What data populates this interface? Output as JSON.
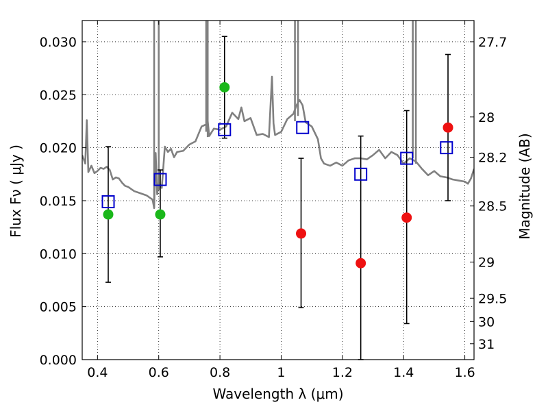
{
  "chart_data": {
    "type": "scatter",
    "xlabel": "Wavelength  λ (μm)",
    "ylabel": "Flux  Fν  ( μJy )",
    "y2label": "Magnitude (AB)",
    "xlim": [
      0.35,
      1.63
    ],
    "ylim": [
      0.0,
      0.032
    ],
    "grid": true,
    "x_ticks": [
      0.4,
      0.6,
      0.8,
      1.0,
      1.2,
      1.4,
      1.6
    ],
    "x_tick_labels": [
      "0.4",
      "0.6",
      "0.8",
      "1",
      "1.2",
      "1.4",
      "1.6"
    ],
    "y_ticks": [
      0.0,
      0.005,
      0.01,
      0.015,
      0.02,
      0.025,
      0.03
    ],
    "y_tick_labels": [
      "0.000",
      "0.005",
      "0.010",
      "0.015",
      "0.020",
      "0.025",
      "0.030"
    ],
    "mag_ticks": [
      {
        "label": "27.7",
        "flux": 0.03
      },
      {
        "label": "28",
        "flux": 0.0229
      },
      {
        "label": "28.2",
        "flux": 0.0191
      },
      {
        "label": "28.5",
        "flux": 0.0145
      },
      {
        "label": "29",
        "flux": 0.0092
      },
      {
        "label": "29.5",
        "flux": 0.0058
      },
      {
        "label": "30",
        "flux": 0.0036
      },
      {
        "label": "31",
        "flux": 0.0015
      }
    ],
    "colors": {
      "green": "#1ab71a",
      "red": "#ee1111",
      "blue": "#0000cc",
      "model": "#808080",
      "error": "#000000"
    },
    "series": [
      {
        "kind": "model_sed",
        "style": "line",
        "color": "#808080",
        "x": [
          0.35,
          0.36,
          0.365,
          0.37,
          0.38,
          0.39,
          0.4,
          0.41,
          0.42,
          0.43,
          0.44,
          0.45,
          0.46,
          0.47,
          0.48,
          0.49,
          0.5,
          0.52,
          0.54,
          0.56,
          0.58,
          0.585,
          0.59,
          0.595,
          0.6,
          0.605,
          0.61,
          0.62,
          0.63,
          0.64,
          0.65,
          0.66,
          0.68,
          0.7,
          0.72,
          0.74,
          0.755,
          0.76,
          0.765,
          0.78,
          0.8,
          0.82,
          0.84,
          0.86,
          0.87,
          0.88,
          0.9,
          0.92,
          0.94,
          0.96,
          0.97,
          0.975,
          0.98,
          1.0,
          1.02,
          1.04,
          1.05,
          1.06,
          1.07,
          1.08,
          1.1,
          1.12,
          1.13,
          1.14,
          1.16,
          1.18,
          1.2,
          1.22,
          1.24,
          1.26,
          1.28,
          1.3,
          1.32,
          1.34,
          1.36,
          1.38,
          1.4,
          1.42,
          1.44,
          1.46,
          1.48,
          1.5,
          1.52,
          1.54,
          1.56,
          1.58,
          1.6,
          1.61,
          1.62,
          1.63
        ],
        "y": [
          0.0193,
          0.0185,
          0.0226,
          0.0177,
          0.0183,
          0.0176,
          0.0178,
          0.0181,
          0.018,
          0.0182,
          0.0179,
          0.017,
          0.0172,
          0.0171,
          0.0167,
          0.0164,
          0.0163,
          0.0159,
          0.0157,
          0.0155,
          0.0151,
          0.0143,
          0.0195,
          0.0156,
          0.0167,
          0.0165,
          0.0162,
          0.0201,
          0.0196,
          0.0199,
          0.0191,
          0.0196,
          0.0197,
          0.0203,
          0.0206,
          0.022,
          0.0222,
          0.0225,
          0.0211,
          0.0218,
          0.0217,
          0.022,
          0.0233,
          0.0227,
          0.0238,
          0.0225,
          0.0228,
          0.0212,
          0.0213,
          0.021,
          0.0267,
          0.0223,
          0.0212,
          0.0215,
          0.0227,
          0.0232,
          0.024,
          0.0245,
          0.024,
          0.0224,
          0.022,
          0.0208,
          0.019,
          0.0185,
          0.0183,
          0.0186,
          0.0183,
          0.0188,
          0.019,
          0.019,
          0.0189,
          0.0193,
          0.0198,
          0.019,
          0.0196,
          0.0193,
          0.0185,
          0.019,
          0.0187,
          0.018,
          0.0174,
          0.0178,
          0.0173,
          0.0172,
          0.017,
          0.0169,
          0.0168,
          0.0166,
          0.0171,
          0.018
        ]
      },
      {
        "kind": "observed_green",
        "style": "circle",
        "color": "#1ab71a",
        "x": [
          0.435,
          0.605,
          0.815
        ],
        "y": [
          0.0137,
          0.0137,
          0.0257
        ],
        "yerr_low": [
          0.0073,
          0.0097,
          0.0209
        ],
        "yerr_high": [
          0.0201,
          0.0179,
          0.0305
        ]
      },
      {
        "kind": "observed_red",
        "style": "circle",
        "color": "#ee1111",
        "x": [
          1.065,
          1.26,
          1.41,
          1.545
        ],
        "y": [
          0.0119,
          0.0091,
          0.0134,
          0.0219
        ],
        "yerr_low": [
          0.0049,
          0.0,
          0.0034,
          0.015
        ],
        "yerr_high": [
          0.019,
          0.0211,
          0.0235,
          0.0288
        ]
      },
      {
        "kind": "model_photometry",
        "style": "open_square",
        "color": "#0000cc",
        "x": [
          0.435,
          0.605,
          0.815,
          1.07,
          1.26,
          1.41,
          1.54
        ],
        "y": [
          0.0149,
          0.017,
          0.0217,
          0.0219,
          0.0175,
          0.019,
          0.02
        ]
      }
    ]
  }
}
